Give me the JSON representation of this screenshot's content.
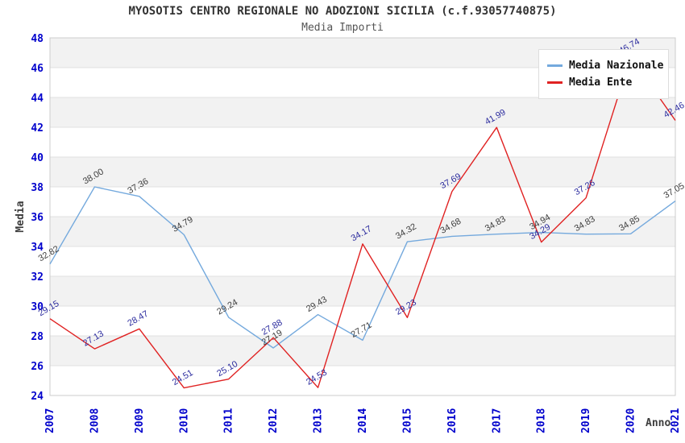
{
  "chart_data": {
    "type": "line",
    "title": "MYOSOTIS CENTRO REGIONALE NO ADOZIONI SICILIA (c.f.93057740875)",
    "subtitle": "Media Importi",
    "xlabel": "Anno",
    "ylabel": "Media",
    "ylim": [
      24,
      48
    ],
    "y_ticks": [
      24,
      26,
      28,
      30,
      32,
      34,
      36,
      38,
      40,
      42,
      44,
      46,
      48
    ],
    "categories": [
      "2007",
      "2008",
      "2009",
      "2010",
      "2011",
      "2012",
      "2013",
      "2014",
      "2015",
      "2016",
      "2017",
      "2018",
      "2019",
      "2020",
      "2021"
    ],
    "series": [
      {
        "name": "Media Nazionale",
        "color": "#74a9dd",
        "label_color": "#3d3d3d",
        "values": [
          32.82,
          38.0,
          37.36,
          34.79,
          29.24,
          27.19,
          29.43,
          27.71,
          34.32,
          34.68,
          34.83,
          34.94,
          34.83,
          34.85,
          37.05
        ]
      },
      {
        "name": "Media Ente",
        "color": "#e02222",
        "label_color": "#2b2b9e",
        "values": [
          29.15,
          27.13,
          28.47,
          24.51,
          25.1,
          27.88,
          24.53,
          34.17,
          29.23,
          37.69,
          41.99,
          34.29,
          37.26,
          46.74,
          42.46
        ]
      }
    ],
    "legend_position": "top-right",
    "grid": true,
    "band_color": "#f2f2f2",
    "grid_color": "#e0e0e0",
    "border_color": "#cccccc",
    "tick_color": "#0000cc"
  }
}
